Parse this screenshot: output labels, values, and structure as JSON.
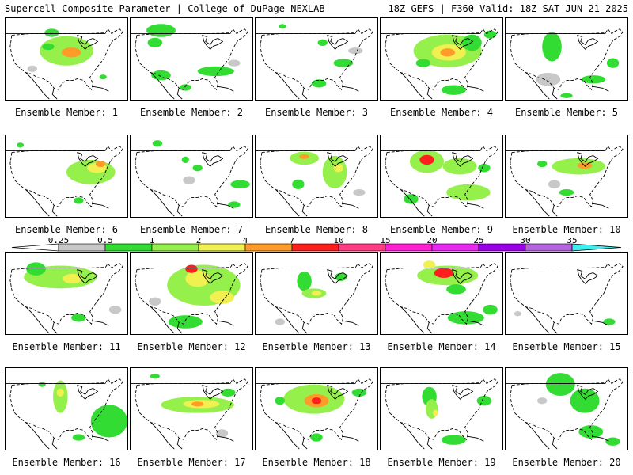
{
  "header": {
    "left_title": "Supercell Composite Parameter | College of DuPage NEXLAB",
    "right_title": "18Z GEFS | F360 Valid: 18Z SAT JUN 21 2025"
  },
  "legend": {
    "labels": [
      "0.25",
      "0.5",
      "1",
      "2",
      "4",
      "7",
      "10",
      "15",
      "20",
      "25",
      "30",
      "35"
    ],
    "colors": [
      "#c8c8c8",
      "#32dc32",
      "#96f04b",
      "#f0f050",
      "#ff9b28",
      "#ff1e1e",
      "#ff3c82",
      "#ff1ed2",
      "#e628f0",
      "#9a00e6",
      "#b464dc",
      "#3cf0f0"
    ]
  },
  "panels": [
    {
      "label": "Ensemble Member: 1",
      "blobs": [
        [
          0.5,
          0.4,
          0.22,
          0.18,
          2
        ],
        [
          0.54,
          0.42,
          0.08,
          0.06,
          4
        ],
        [
          0.35,
          0.35,
          0.05,
          0.04,
          1
        ],
        [
          0.38,
          0.18,
          0.06,
          0.05,
          1
        ],
        [
          0.8,
          0.72,
          0.03,
          0.03,
          1
        ],
        [
          0.22,
          0.62,
          0.04,
          0.04,
          0
        ]
      ]
    },
    {
      "label": "Ensemble Member: 2",
      "blobs": [
        [
          0.25,
          0.15,
          0.12,
          0.08,
          1
        ],
        [
          0.2,
          0.3,
          0.06,
          0.06,
          1
        ],
        [
          0.25,
          0.7,
          0.08,
          0.06,
          1
        ],
        [
          0.7,
          0.65,
          0.15,
          0.06,
          1
        ],
        [
          0.45,
          0.85,
          0.05,
          0.04,
          1
        ],
        [
          0.85,
          0.55,
          0.05,
          0.04,
          0
        ]
      ]
    },
    {
      "label": "Ensemble Member: 3",
      "blobs": [
        [
          0.55,
          0.3,
          0.04,
          0.04,
          1
        ],
        [
          0.72,
          0.55,
          0.08,
          0.05,
          1
        ],
        [
          0.52,
          0.8,
          0.06,
          0.05,
          1
        ],
        [
          0.82,
          0.4,
          0.06,
          0.04,
          0
        ],
        [
          0.22,
          0.1,
          0.03,
          0.03,
          1
        ]
      ]
    },
    {
      "label": "Ensemble Member: 4",
      "blobs": [
        [
          0.55,
          0.4,
          0.28,
          0.2,
          2
        ],
        [
          0.56,
          0.42,
          0.14,
          0.1,
          3
        ],
        [
          0.55,
          0.42,
          0.06,
          0.05,
          4
        ],
        [
          0.75,
          0.3,
          0.08,
          0.1,
          1
        ],
        [
          0.35,
          0.55,
          0.06,
          0.05,
          1
        ],
        [
          0.6,
          0.88,
          0.1,
          0.06,
          1
        ],
        [
          0.9,
          0.2,
          0.05,
          0.05,
          1
        ]
      ]
    },
    {
      "label": "Ensemble Member: 5",
      "blobs": [
        [
          0.38,
          0.35,
          0.08,
          0.18,
          1
        ],
        [
          0.35,
          0.75,
          0.1,
          0.08,
          0
        ],
        [
          0.72,
          0.75,
          0.1,
          0.05,
          1
        ],
        [
          0.88,
          0.55,
          0.05,
          0.06,
          1
        ],
        [
          0.5,
          0.95,
          0.05,
          0.03,
          1
        ]
      ]
    },
    {
      "label": "Ensemble Member: 6",
      "blobs": [
        [
          0.7,
          0.45,
          0.2,
          0.15,
          2
        ],
        [
          0.75,
          0.4,
          0.08,
          0.06,
          3
        ],
        [
          0.78,
          0.35,
          0.04,
          0.04,
          4
        ],
        [
          0.12,
          0.12,
          0.03,
          0.03,
          1
        ],
        [
          0.6,
          0.8,
          0.04,
          0.04,
          1
        ]
      ]
    },
    {
      "label": "Ensemble Member: 7",
      "blobs": [
        [
          0.22,
          0.1,
          0.04,
          0.04,
          1
        ],
        [
          0.45,
          0.3,
          0.03,
          0.04,
          1
        ],
        [
          0.55,
          0.4,
          0.04,
          0.04,
          1
        ],
        [
          0.9,
          0.6,
          0.08,
          0.05,
          1
        ],
        [
          0.85,
          0.85,
          0.05,
          0.04,
          1
        ],
        [
          0.48,
          0.55,
          0.05,
          0.05,
          0
        ]
      ]
    },
    {
      "label": "Ensemble Member: 8",
      "blobs": [
        [
          0.4,
          0.28,
          0.12,
          0.08,
          2
        ],
        [
          0.4,
          0.26,
          0.04,
          0.03,
          4
        ],
        [
          0.65,
          0.45,
          0.1,
          0.2,
          2
        ],
        [
          0.68,
          0.4,
          0.04,
          0.05,
          3
        ],
        [
          0.35,
          0.6,
          0.05,
          0.06,
          1
        ],
        [
          0.85,
          0.7,
          0.05,
          0.04,
          0
        ]
      ]
    },
    {
      "label": "Ensemble Member: 9",
      "blobs": [
        [
          0.38,
          0.32,
          0.14,
          0.14,
          2
        ],
        [
          0.38,
          0.3,
          0.06,
          0.06,
          5
        ],
        [
          0.65,
          0.38,
          0.14,
          0.1,
          2
        ],
        [
          0.72,
          0.7,
          0.18,
          0.1,
          2
        ],
        [
          0.25,
          0.78,
          0.06,
          0.06,
          1
        ],
        [
          0.85,
          0.4,
          0.05,
          0.05,
          1
        ]
      ]
    },
    {
      "label": "Ensemble Member: 10",
      "blobs": [
        [
          0.6,
          0.38,
          0.22,
          0.1,
          2
        ],
        [
          0.65,
          0.37,
          0.06,
          0.04,
          4
        ],
        [
          0.3,
          0.35,
          0.04,
          0.04,
          1
        ],
        [
          0.5,
          0.7,
          0.06,
          0.04,
          1
        ],
        [
          0.4,
          0.6,
          0.05,
          0.05,
          0
        ]
      ]
    },
    {
      "label": "Ensemble Member: 11",
      "blobs": [
        [
          0.45,
          0.3,
          0.3,
          0.14,
          2
        ],
        [
          0.55,
          0.32,
          0.08,
          0.06,
          3
        ],
        [
          0.25,
          0.2,
          0.08,
          0.08,
          1
        ],
        [
          0.6,
          0.8,
          0.06,
          0.05,
          1
        ],
        [
          0.9,
          0.7,
          0.05,
          0.05,
          0
        ]
      ]
    },
    {
      "label": "Ensemble Member: 12",
      "blobs": [
        [
          0.6,
          0.4,
          0.3,
          0.25,
          2
        ],
        [
          0.55,
          0.32,
          0.1,
          0.1,
          3
        ],
        [
          0.5,
          0.2,
          0.05,
          0.05,
          5
        ],
        [
          0.75,
          0.55,
          0.1,
          0.08,
          3
        ],
        [
          0.45,
          0.85,
          0.14,
          0.08,
          1
        ],
        [
          0.2,
          0.6,
          0.05,
          0.05,
          0
        ]
      ]
    },
    {
      "label": "Ensemble Member: 13",
      "blobs": [
        [
          0.4,
          0.35,
          0.06,
          0.12,
          1
        ],
        [
          0.48,
          0.5,
          0.1,
          0.06,
          2
        ],
        [
          0.5,
          0.5,
          0.04,
          0.03,
          3
        ],
        [
          0.7,
          0.3,
          0.05,
          0.05,
          1
        ],
        [
          0.2,
          0.85,
          0.04,
          0.04,
          0
        ]
      ]
    },
    {
      "label": "Ensemble Member: 14",
      "blobs": [
        [
          0.55,
          0.28,
          0.25,
          0.12,
          2
        ],
        [
          0.52,
          0.25,
          0.08,
          0.06,
          5
        ],
        [
          0.4,
          0.15,
          0.05,
          0.05,
          3
        ],
        [
          0.62,
          0.45,
          0.08,
          0.06,
          1
        ],
        [
          0.7,
          0.8,
          0.15,
          0.08,
          1
        ],
        [
          0.9,
          0.7,
          0.06,
          0.06,
          1
        ]
      ]
    },
    {
      "label": "Ensemble Member: 15",
      "blobs": [
        [
          0.85,
          0.85,
          0.05,
          0.04,
          1
        ],
        [
          0.1,
          0.75,
          0.03,
          0.03,
          0
        ]
      ]
    },
    {
      "label": "Ensemble Member: 16",
      "blobs": [
        [
          0.45,
          0.35,
          0.06,
          0.2,
          2
        ],
        [
          0.45,
          0.3,
          0.03,
          0.05,
          3
        ],
        [
          0.85,
          0.65,
          0.15,
          0.2,
          1
        ],
        [
          0.3,
          0.2,
          0.03,
          0.03,
          1
        ],
        [
          0.6,
          0.85,
          0.05,
          0.04,
          1
        ]
      ]
    },
    {
      "label": "Ensemble Member: 17",
      "blobs": [
        [
          0.55,
          0.45,
          0.3,
          0.1,
          2
        ],
        [
          0.58,
          0.44,
          0.15,
          0.05,
          3
        ],
        [
          0.55,
          0.44,
          0.05,
          0.03,
          4
        ],
        [
          0.2,
          0.1,
          0.04,
          0.03,
          1
        ],
        [
          0.8,
          0.3,
          0.06,
          0.05,
          1
        ],
        [
          0.75,
          0.8,
          0.05,
          0.05,
          0
        ]
      ]
    },
    {
      "label": "Ensemble Member: 18",
      "blobs": [
        [
          0.48,
          0.38,
          0.25,
          0.18,
          2
        ],
        [
          0.5,
          0.4,
          0.1,
          0.08,
          4
        ],
        [
          0.5,
          0.4,
          0.04,
          0.04,
          5
        ],
        [
          0.2,
          0.4,
          0.04,
          0.05,
          1
        ],
        [
          0.85,
          0.3,
          0.06,
          0.05,
          1
        ],
        [
          0.5,
          0.85,
          0.05,
          0.05,
          1
        ]
      ]
    },
    {
      "label": "Ensemble Member: 19",
      "blobs": [
        [
          0.4,
          0.35,
          0.06,
          0.12,
          1
        ],
        [
          0.42,
          0.5,
          0.05,
          0.12,
          2
        ],
        [
          0.45,
          0.55,
          0.02,
          0.04,
          3
        ],
        [
          0.85,
          0.4,
          0.06,
          0.06,
          1
        ],
        [
          0.6,
          0.88,
          0.1,
          0.06,
          1
        ]
      ]
    },
    {
      "label": "Ensemble Member: 20",
      "blobs": [
        [
          0.45,
          0.2,
          0.12,
          0.14,
          1
        ],
        [
          0.65,
          0.4,
          0.12,
          0.15,
          1
        ],
        [
          0.7,
          0.78,
          0.1,
          0.08,
          1
        ],
        [
          0.88,
          0.9,
          0.06,
          0.05,
          1
        ],
        [
          0.3,
          0.4,
          0.04,
          0.04,
          0
        ]
      ]
    }
  ]
}
